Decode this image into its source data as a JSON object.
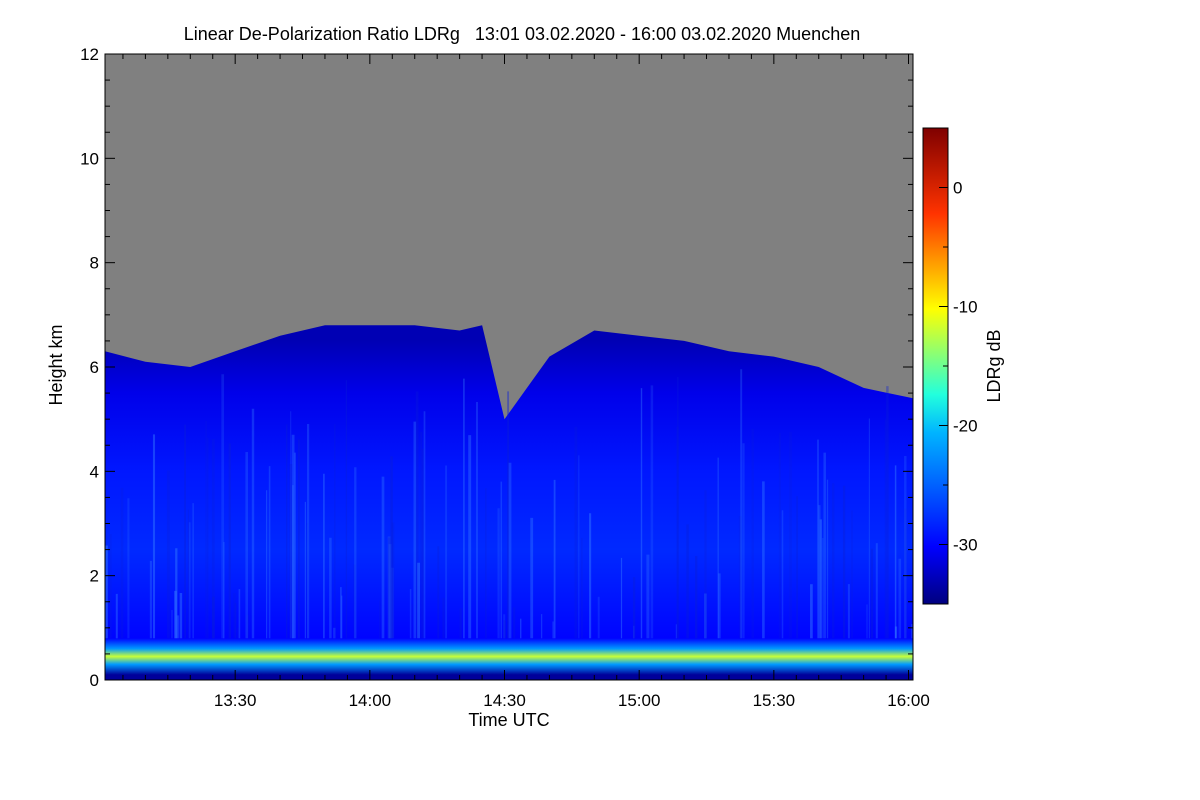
{
  "chart_data": {
    "type": "heatmap",
    "title": "Linear De-Polarization Ratio LDRg   13:01 03.02.2020 - 16:00 03.02.2020 Muenchen",
    "xlabel": "Time UTC",
    "ylabel": "Height km",
    "colorbar_label": "LDRg dB",
    "x_range": [
      "13:01",
      "16:01"
    ],
    "x_ticks": [
      "13:30",
      "14:00",
      "14:30",
      "15:00",
      "15:30",
      "16:00"
    ],
    "y_range": [
      0,
      12
    ],
    "y_ticks": [
      "0",
      "2",
      "4",
      "6",
      "8",
      "10",
      "12"
    ],
    "colorbar_range": [
      -35,
      5
    ],
    "colorbar_ticks": [
      "0",
      "-10",
      "-20",
      "-30"
    ],
    "colormap": "jet",
    "no_signal_color": "#808080",
    "signal_top_km": [
      {
        "time": "13:01",
        "height": 6.3
      },
      {
        "time": "13:10",
        "height": 6.1
      },
      {
        "time": "13:20",
        "height": 6.0
      },
      {
        "time": "13:30",
        "height": 6.3
      },
      {
        "time": "13:40",
        "height": 6.6
      },
      {
        "time": "13:50",
        "height": 6.8
      },
      {
        "time": "14:00",
        "height": 6.8
      },
      {
        "time": "14:10",
        "height": 6.8
      },
      {
        "time": "14:20",
        "height": 6.7
      },
      {
        "time": "14:25",
        "height": 6.8
      },
      {
        "time": "14:30",
        "height": 5.0
      },
      {
        "time": "14:40",
        "height": 6.2
      },
      {
        "time": "14:50",
        "height": 6.7
      },
      {
        "time": "15:00",
        "height": 6.6
      },
      {
        "time": "15:10",
        "height": 6.5
      },
      {
        "time": "15:20",
        "height": 6.3
      },
      {
        "time": "15:30",
        "height": 6.2
      },
      {
        "time": "15:40",
        "height": 6.0
      },
      {
        "time": "15:50",
        "height": 5.6
      },
      {
        "time": "16:01",
        "height": 5.4
      }
    ],
    "height_profile": [
      {
        "height": 0.1,
        "ldr": -34
      },
      {
        "height": 0.3,
        "ldr": -22
      },
      {
        "height": 0.45,
        "ldr": -12
      },
      {
        "height": 0.6,
        "ldr": -22
      },
      {
        "height": 0.8,
        "ldr": -30
      },
      {
        "height": 2.5,
        "ldr": -28
      },
      {
        "height": 4.0,
        "ldr": -29
      },
      {
        "height": 5.5,
        "ldr": -31
      },
      {
        "height": 6.5,
        "ldr": -33
      }
    ]
  }
}
